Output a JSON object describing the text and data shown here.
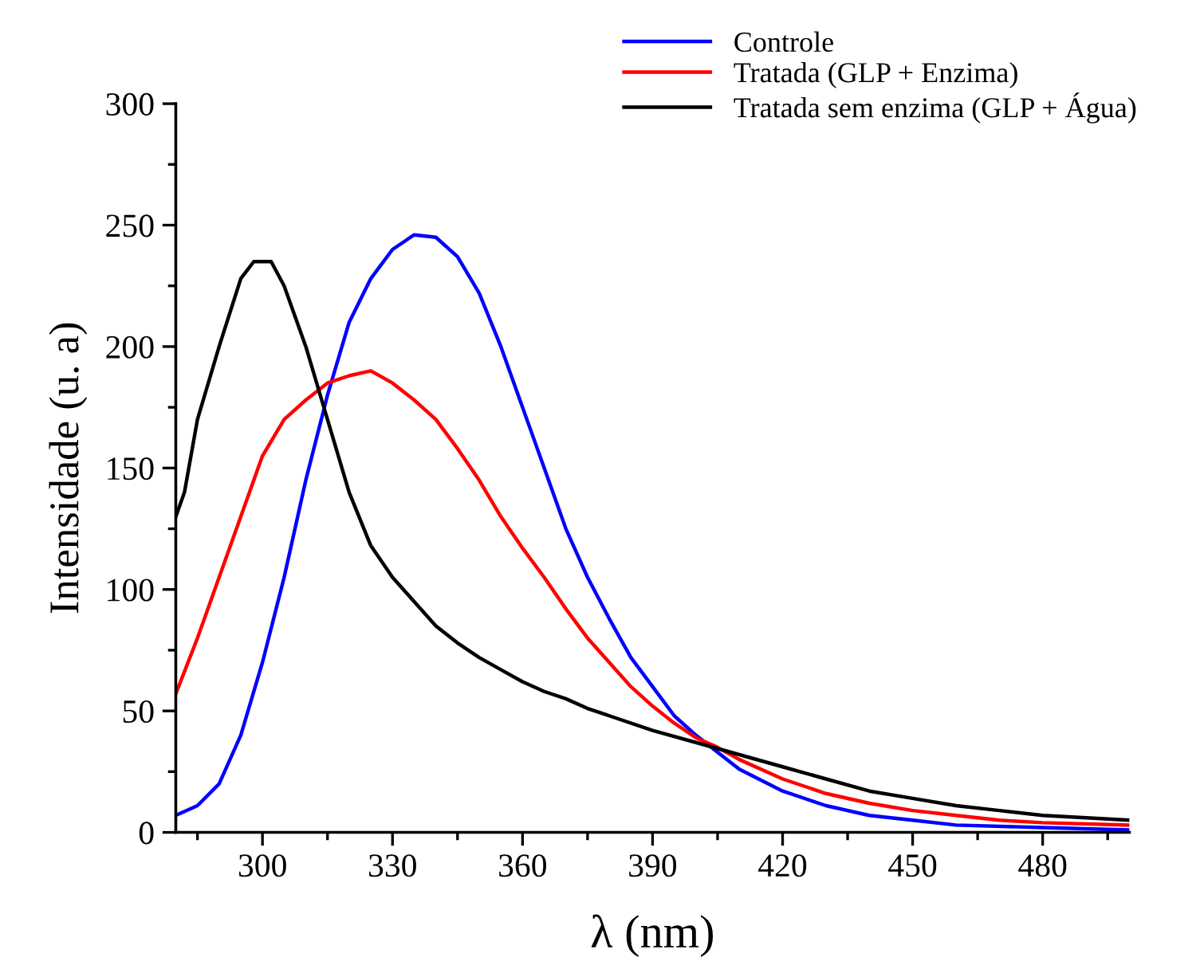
{
  "chart_data": {
    "type": "line",
    "xlabel": "λ (nm)",
    "ylabel": "Intensidade (u. a)",
    "xlim": [
      280,
      500
    ],
    "ylim": [
      0,
      300
    ],
    "xticks": [
      300,
      330,
      360,
      390,
      420,
      450,
      480
    ],
    "yticks": [
      0,
      50,
      100,
      150,
      200,
      250,
      300
    ],
    "grid": false,
    "legend": "top right",
    "line_style": "solid",
    "marker": "none",
    "series": [
      {
        "name": "Controle",
        "color": "#0000ff",
        "x": [
          280,
          285,
          290,
          295,
          300,
          305,
          310,
          315,
          320,
          325,
          330,
          335,
          340,
          345,
          350,
          355,
          360,
          365,
          370,
          375,
          380,
          385,
          390,
          395,
          400,
          405,
          410,
          420,
          430,
          440,
          450,
          460,
          480,
          500
        ],
        "values": [
          7,
          11,
          20,
          40,
          70,
          105,
          145,
          180,
          210,
          228,
          240,
          246,
          245,
          237,
          222,
          200,
          175,
          150,
          125,
          105,
          88,
          72,
          60,
          48,
          40,
          33,
          26,
          17,
          11,
          7,
          5,
          3,
          2,
          1
        ]
      },
      {
        "name": "Tratada (GLP + Enzima)",
        "color": "#ff0000",
        "x": [
          280,
          285,
          290,
          295,
          300,
          305,
          310,
          315,
          320,
          325,
          330,
          335,
          340,
          345,
          350,
          355,
          360,
          365,
          370,
          375,
          380,
          385,
          390,
          395,
          400,
          405,
          410,
          420,
          430,
          440,
          450,
          460,
          470,
          480,
          500
        ],
        "values": [
          57,
          80,
          105,
          130,
          155,
          170,
          178,
          185,
          188,
          190,
          185,
          178,
          170,
          158,
          145,
          130,
          117,
          105,
          92,
          80,
          70,
          60,
          52,
          45,
          39,
          35,
          30,
          22,
          16,
          12,
          9,
          7,
          5,
          4,
          3
        ]
      },
      {
        "name": "Tratada sem enzima (GLP + Água)",
        "color": "#000000",
        "x": [
          280,
          282,
          285,
          290,
          295,
          298,
          302,
          305,
          310,
          315,
          320,
          325,
          330,
          335,
          340,
          345,
          350,
          355,
          360,
          365,
          370,
          375,
          380,
          390,
          400,
          410,
          420,
          430,
          440,
          450,
          460,
          470,
          480,
          500
        ],
        "values": [
          130,
          140,
          170,
          200,
          228,
          235,
          235,
          225,
          200,
          170,
          140,
          118,
          105,
          95,
          85,
          78,
          72,
          67,
          62,
          58,
          55,
          51,
          48,
          42,
          37,
          32,
          27,
          22,
          17,
          14,
          11,
          9,
          7,
          5
        ]
      }
    ]
  }
}
